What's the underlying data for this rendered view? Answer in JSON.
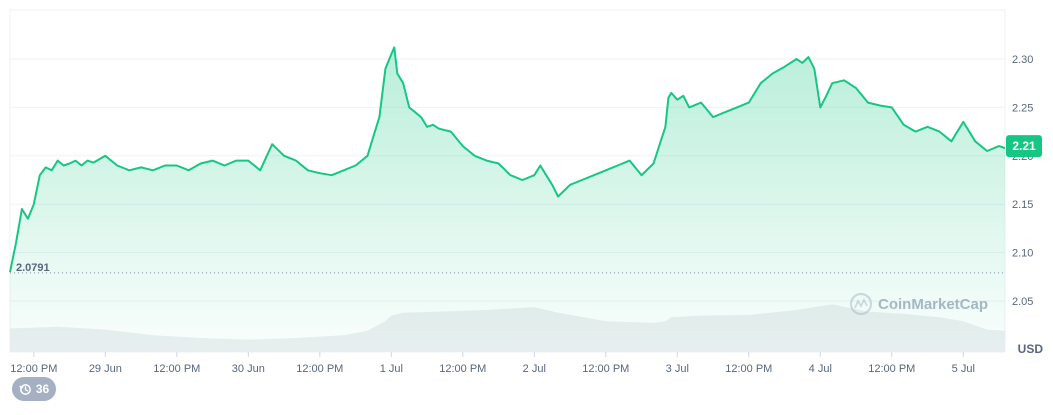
{
  "chart_data": {
    "type": "area",
    "currency_label": "USD",
    "current_price_label": "2.21",
    "current_price": 2.21,
    "reference_label": "2.0791",
    "reference_value": 2.0791,
    "ylim": [
      2.0,
      2.32
    ],
    "y_ticks": [
      {
        "value": 2.3,
        "label": "2.30"
      },
      {
        "value": 2.25,
        "label": "2.25"
      },
      {
        "value": 2.2,
        "label": "2.20"
      },
      {
        "value": 2.15,
        "label": "2.15"
      },
      {
        "value": 2.1,
        "label": "2.10"
      },
      {
        "value": 2.05,
        "label": "2.05"
      }
    ],
    "x_range_hours": [
      0,
      167
    ],
    "x_ticks": [
      {
        "hour": 4,
        "label": "12:00 PM"
      },
      {
        "hour": 16,
        "label": "29 Jun"
      },
      {
        "hour": 28,
        "label": "12:00 PM"
      },
      {
        "hour": 40,
        "label": "30 Jun"
      },
      {
        "hour": 52,
        "label": "12:00 PM"
      },
      {
        "hour": 64,
        "label": "1 Jul"
      },
      {
        "hour": 76,
        "label": "12:00 PM"
      },
      {
        "hour": 88,
        "label": "2 Jul"
      },
      {
        "hour": 100,
        "label": "12:00 PM"
      },
      {
        "hour": 112,
        "label": "3 Jul"
      },
      {
        "hour": 124,
        "label": "12:00 PM"
      },
      {
        "hour": 136,
        "label": "4 Jul"
      },
      {
        "hour": 148,
        "label": "12:00 PM"
      },
      {
        "hour": 160,
        "label": "5 Jul"
      }
    ],
    "series": [
      {
        "x": [
          0,
          1,
          2,
          3,
          4,
          5,
          6,
          7,
          8,
          9,
          10,
          11,
          12,
          13,
          14,
          16,
          18,
          20,
          22,
          24,
          26,
          28,
          30,
          32,
          34,
          36,
          38,
          40,
          42,
          44,
          46,
          48,
          50,
          52,
          54,
          56,
          58,
          60,
          61,
          62,
          63,
          64,
          64.5,
          65,
          66,
          67,
          68,
          69,
          70,
          71,
          72,
          74,
          76,
          78,
          80,
          82,
          84,
          86,
          88,
          89,
          90,
          91,
          92,
          94,
          96,
          98,
          100,
          102,
          104,
          106,
          108,
          110,
          110.5,
          111,
          112,
          113,
          114,
          116,
          118,
          120,
          122,
          124,
          126,
          128,
          130,
          132,
          133,
          134,
          135,
          136,
          137,
          138,
          140,
          142,
          144,
          146,
          148,
          150,
          152,
          154,
          156,
          158,
          160,
          162,
          164,
          166,
          167
        ],
        "values": [
          2.08,
          2.11,
          2.145,
          2.135,
          2.15,
          2.18,
          2.188,
          2.185,
          2.195,
          2.19,
          2.192,
          2.195,
          2.19,
          2.195,
          2.193,
          2.2,
          2.19,
          2.185,
          2.188,
          2.185,
          2.19,
          2.19,
          2.185,
          2.192,
          2.195,
          2.19,
          2.195,
          2.195,
          2.185,
          2.212,
          2.2,
          2.195,
          2.185,
          2.182,
          2.18,
          2.185,
          2.19,
          2.2,
          2.22,
          2.24,
          2.29,
          2.305,
          2.312,
          2.285,
          2.275,
          2.25,
          2.245,
          2.24,
          2.23,
          2.232,
          2.228,
          2.225,
          2.21,
          2.2,
          2.195,
          2.192,
          2.18,
          2.175,
          2.18,
          2.19,
          2.18,
          2.17,
          2.158,
          2.17,
          2.175,
          2.18,
          2.185,
          2.19,
          2.195,
          2.18,
          2.192,
          2.23,
          2.26,
          2.265,
          2.258,
          2.262,
          2.25,
          2.255,
          2.24,
          2.245,
          2.25,
          2.255,
          2.275,
          2.285,
          2.292,
          2.3,
          2.296,
          2.302,
          2.29,
          2.25,
          2.262,
          2.275,
          2.278,
          2.27,
          2.255,
          2.252,
          2.25,
          2.232,
          2.225,
          2.23,
          2.225,
          2.215,
          2.235,
          2.215,
          2.205,
          2.21,
          2.208
        ]
      }
    ],
    "volume": {
      "x": [
        0,
        8,
        16,
        24,
        32,
        40,
        48,
        56,
        60,
        63,
        64,
        66,
        72,
        80,
        88,
        92,
        100,
        108,
        110,
        111,
        116,
        124,
        132,
        136,
        138,
        144,
        150,
        156,
        160,
        164,
        167
      ],
      "values": [
        0.42,
        0.45,
        0.4,
        0.3,
        0.25,
        0.22,
        0.25,
        0.3,
        0.38,
        0.55,
        0.65,
        0.7,
        0.72,
        0.75,
        0.8,
        0.7,
        0.55,
        0.52,
        0.55,
        0.62,
        0.65,
        0.66,
        0.75,
        0.82,
        0.85,
        0.72,
        0.68,
        0.62,
        0.55,
        0.4,
        0.38
      ]
    },
    "watermark": "CoinMarketCap",
    "grid": true
  },
  "badge": {
    "icon": "history-icon",
    "count": "36"
  },
  "colors": {
    "line": "#16c784",
    "area_top": "#16c784",
    "grid": "#eff2f5",
    "axis_text": "#58667e",
    "volume": "#e9ecef",
    "badge_bg": "#a6b0c3",
    "reference_line": "#808a9d"
  }
}
